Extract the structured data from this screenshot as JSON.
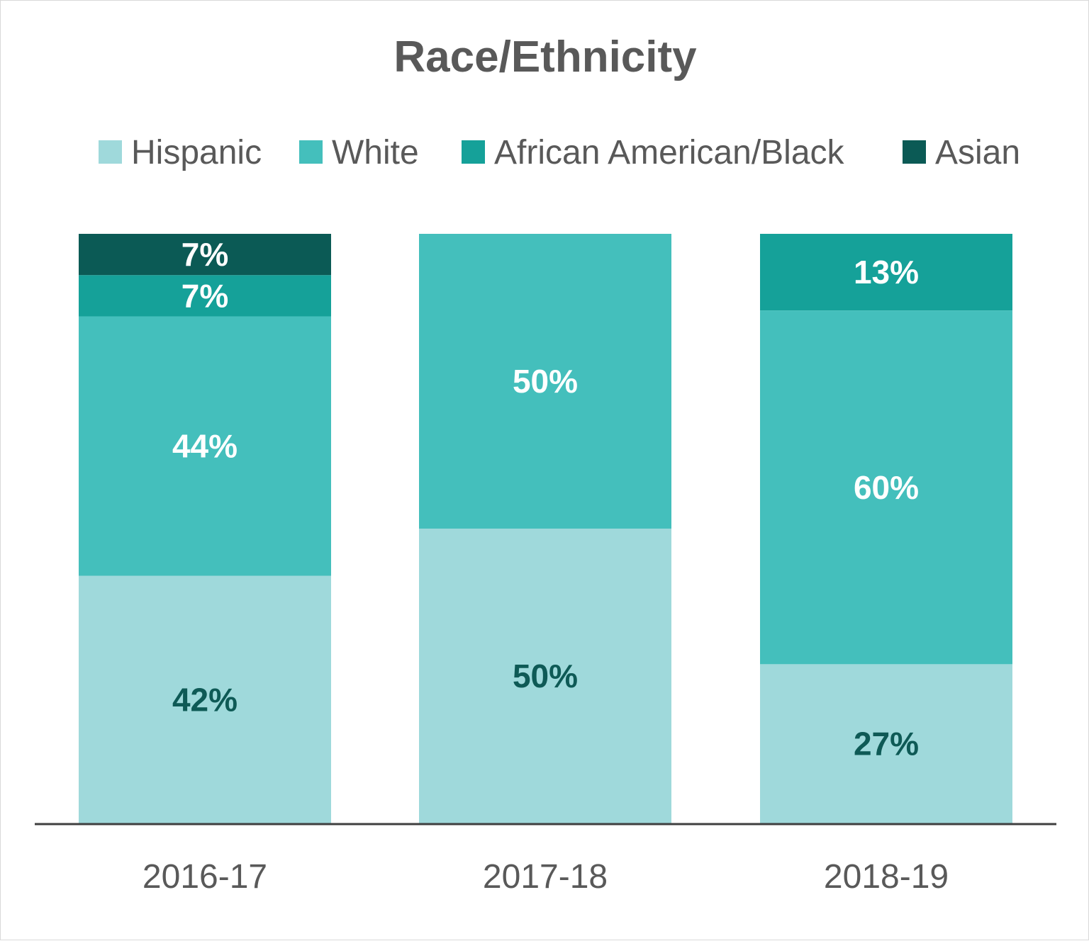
{
  "chart_data": {
    "type": "bar",
    "stacked": true,
    "title": "Race/Ethnicity",
    "categories": [
      "2016-17",
      "2017-18",
      "2018-19"
    ],
    "series": [
      {
        "name": "Hispanic",
        "values": [
          42,
          50,
          27
        ],
        "labels": [
          "42%",
          "50%",
          "27%"
        ],
        "color": "#9fd9db",
        "label_color": "#0e5a56"
      },
      {
        "name": "White",
        "values": [
          44,
          50,
          60
        ],
        "labels": [
          "44%",
          "50%",
          "60%"
        ],
        "color": "#44bfbc",
        "label_color": "#ffffff"
      },
      {
        "name": "African American/Black",
        "values": [
          7,
          0,
          13
        ],
        "labels": [
          "7%",
          "",
          "13%"
        ],
        "color": "#15a199",
        "label_color": "#ffffff"
      },
      {
        "name": "Asian",
        "values": [
          7,
          0,
          0
        ],
        "labels": [
          "7%",
          "",
          ""
        ],
        "color": "#0b5a55",
        "label_color": "#ffffff"
      }
    ],
    "ylim": [
      0,
      100
    ],
    "legend_position": "top",
    "grid": false
  }
}
